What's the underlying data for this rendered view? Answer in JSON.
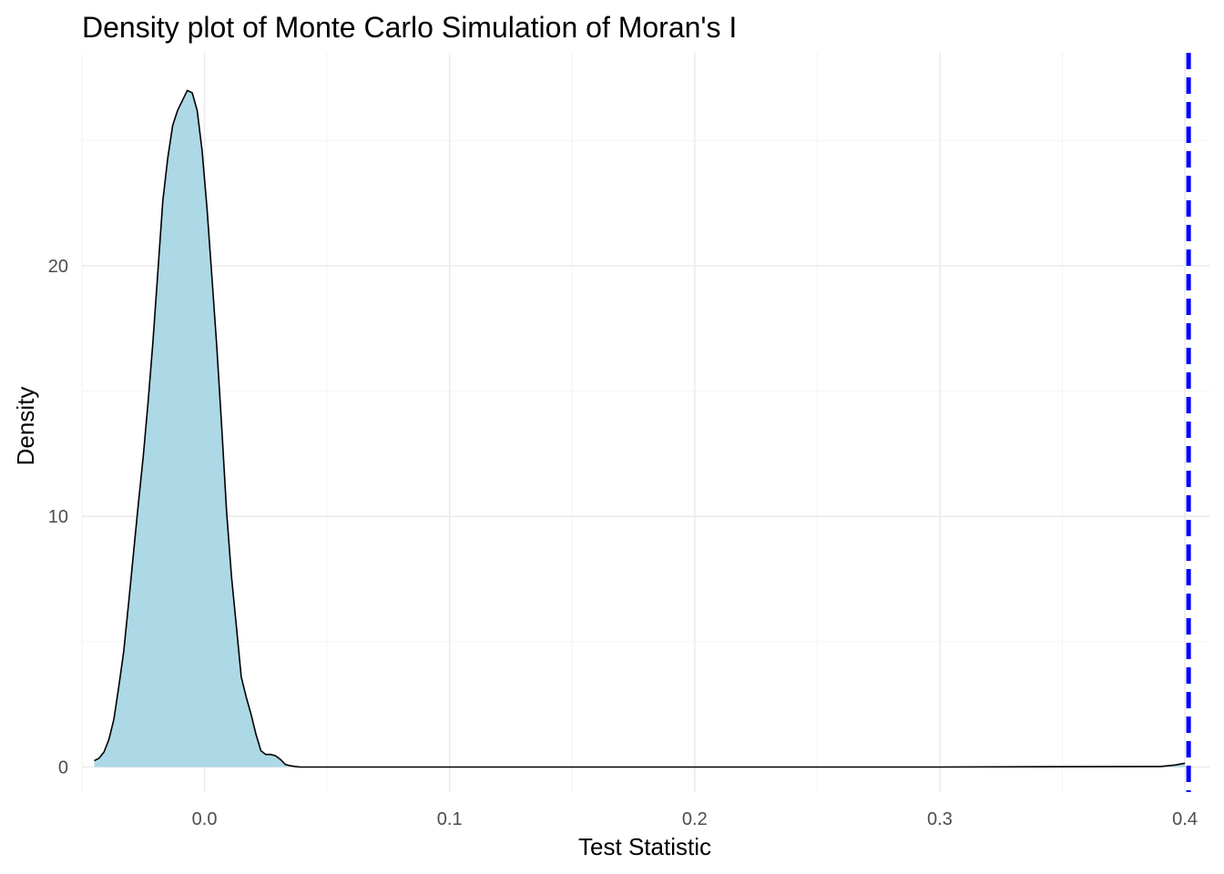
{
  "chart_data": {
    "type": "area",
    "title": "Density plot of Monte Carlo Simulation of Moran's I",
    "xlabel": "Test Statistic",
    "ylabel": "Density",
    "xlim": [
      -0.05,
      0.41
    ],
    "ylim": [
      -1.0,
      28.5
    ],
    "x_ticks": [
      0.0,
      0.1,
      0.2,
      0.3,
      0.4
    ],
    "x_tick_labels": [
      "0.0",
      "0.1",
      "0.2",
      "0.3",
      "0.4"
    ],
    "y_ticks": [
      0,
      10,
      20
    ],
    "y_tick_labels": [
      "0",
      "10",
      "20"
    ],
    "grid": true,
    "legend": "none",
    "fill_color": "#add8e6",
    "line_color": "#000000",
    "reference_line_color": "#0000ff",
    "series": [
      {
        "x": [
          -0.045,
          -0.043,
          -0.041,
          -0.039,
          -0.037,
          -0.035,
          -0.033,
          -0.031,
          -0.029,
          -0.027,
          -0.025,
          -0.023,
          -0.021,
          -0.019,
          -0.017,
          -0.015,
          -0.013,
          -0.011,
          -0.009,
          -0.007,
          -0.005,
          -0.003,
          -0.001,
          0.001,
          0.003,
          0.005,
          0.007,
          0.009,
          0.011,
          0.013,
          0.015,
          0.017,
          0.019,
          0.021,
          0.023,
          0.025,
          0.027,
          0.029,
          0.031,
          0.033,
          0.035,
          0.037,
          0.039,
          0.041,
          0.043,
          0.045,
          0.047,
          0.049,
          0.051,
          0.053,
          0.055,
          0.06,
          0.1,
          0.2,
          0.3,
          0.39,
          0.396,
          0.4
        ],
        "y": [
          0.25,
          0.35,
          0.6,
          1.1,
          1.9,
          3.2,
          4.6,
          6.5,
          8.5,
          10.5,
          12.4,
          14.6,
          17.0,
          19.8,
          22.6,
          24.3,
          25.6,
          26.2,
          26.6,
          27.0,
          26.9,
          26.2,
          24.6,
          22.3,
          19.6,
          16.8,
          13.6,
          10.2,
          7.6,
          5.6,
          3.6,
          2.8,
          2.1,
          1.3,
          0.65,
          0.5,
          0.5,
          0.45,
          0.3,
          0.1,
          0.05,
          0.02,
          0.0,
          0.0,
          0.0,
          0.0,
          0.0,
          0.0,
          0.0,
          0.0,
          0.0,
          0.0,
          0.0,
          0.0,
          0.0,
          0.02,
          0.08,
          0.15
        ]
      }
    ],
    "reference_line": {
      "x": 0.4015,
      "style": "dashed"
    }
  }
}
